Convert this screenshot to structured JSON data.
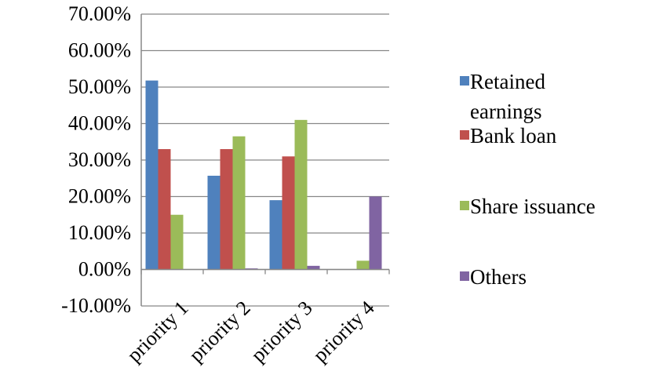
{
  "chart_data": {
    "type": "bar",
    "categories": [
      "priority 1",
      "priority 2",
      "priority 3",
      "priority 4"
    ],
    "series": [
      {
        "name": "Retained earnings",
        "color": "#4F81BD",
        "values": [
          0.518,
          0.257,
          0.19,
          0.0
        ]
      },
      {
        "name": "Bank loan",
        "color": "#C0504D",
        "values": [
          0.33,
          0.33,
          0.31,
          0.0
        ]
      },
      {
        "name": "Share issuance",
        "color": "#9BBB59",
        "values": [
          0.15,
          0.365,
          0.41,
          0.024
        ]
      },
      {
        "name": "Others",
        "color": "#8064A2",
        "values": [
          0.0,
          0.003,
          0.01,
          0.2
        ]
      }
    ],
    "legend_lines": [
      [
        "Retained",
        "earnings"
      ],
      [
        "Bank loan"
      ],
      [
        "Share issuance"
      ],
      [
        "Others"
      ]
    ],
    "ylim": [
      -0.1,
      0.7
    ],
    "yticks": [
      -0.1,
      0.0,
      0.1,
      0.2,
      0.3,
      0.4,
      0.5,
      0.6,
      0.7
    ],
    "ytick_labels": [
      "-10.00%",
      "0.00%",
      "10.00%",
      "20.00%",
      "30.00%",
      "40.00%",
      "50.00%",
      "60.00%",
      "70.00%"
    ],
    "grid": true,
    "legend_position": "right",
    "title": "",
    "xlabel": "",
    "ylabel": ""
  }
}
